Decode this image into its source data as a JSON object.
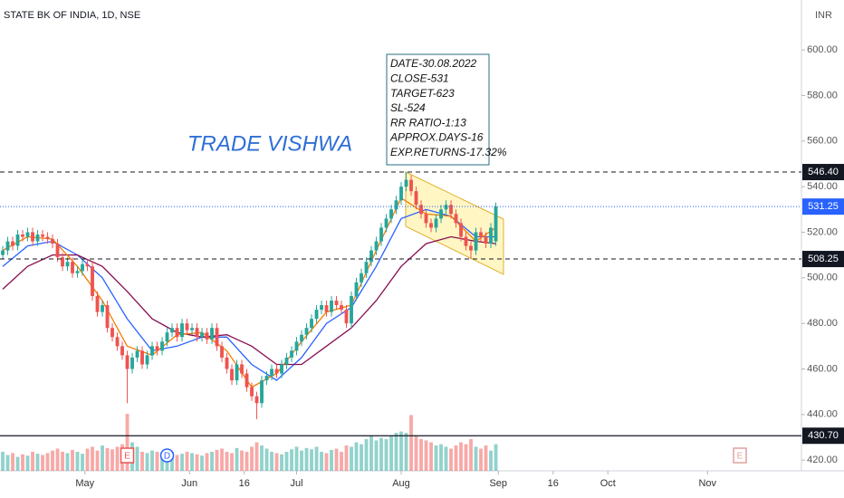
{
  "chart_data": {
    "type": "candlestick",
    "title": "STATE BK OF INDIA, 1D, NSE",
    "currency_label": "INR",
    "up_color": "#26a69a",
    "down_color": "#ef5350",
    "xlim": [
      -0.55,
      160.36
    ],
    "xticks": [
      {
        "value": 16.5,
        "label": "May"
      },
      {
        "value": 37.5,
        "label": "Jun"
      },
      {
        "value": 48.5,
        "label": "16"
      },
      {
        "value": 59,
        "label": "Jul"
      },
      {
        "value": 80,
        "label": "Aug"
      },
      {
        "value": 99.5,
        "label": "Sep"
      },
      {
        "value": 110.5,
        "label": "16"
      },
      {
        "value": 121.5,
        "label": "Oct"
      },
      {
        "value": 141.5,
        "label": "Nov"
      }
    ],
    "ylim": [
      415.3,
      621.9
    ],
    "yticks": [
      {
        "value": 420,
        "label": "420.00"
      },
      {
        "value": 440,
        "label": "440.00"
      },
      {
        "value": 460,
        "label": "460.00"
      },
      {
        "value": 480,
        "label": "480.00"
      },
      {
        "value": 500,
        "label": "500.00"
      },
      {
        "value": 520,
        "label": "520.00"
      },
      {
        "value": 540,
        "label": "540.00"
      },
      {
        "value": 560,
        "label": "560.00"
      },
      {
        "value": 580,
        "label": "580.00"
      },
      {
        "value": 600,
        "label": "600.00"
      }
    ],
    "open": [
      510,
      512,
      516,
      514,
      519,
      518,
      520,
      516,
      519,
      518,
      517,
      515,
      509,
      505,
      507,
      502,
      503,
      506,
      505,
      492,
      485,
      488,
      478,
      474,
      470,
      466,
      460,
      465,
      468,
      462,
      466,
      470,
      468,
      472,
      476,
      478,
      474,
      480,
      477,
      478,
      474,
      476,
      473,
      478,
      470,
      465,
      460,
      455,
      462,
      458,
      452,
      448,
      445,
      455,
      457,
      460,
      458,
      462,
      465,
      468,
      472,
      475,
      478,
      482,
      486,
      488,
      485,
      490,
      488,
      486,
      480,
      492,
      498,
      502,
      507,
      512,
      516,
      522,
      526,
      530,
      534,
      540,
      543,
      538,
      532,
      528,
      524,
      522,
      526,
      530,
      532,
      528,
      524,
      518,
      514,
      512,
      520,
      518,
      515,
      516
    ],
    "high": [
      514,
      518,
      518,
      521,
      521,
      522,
      522,
      521,
      521,
      520,
      519,
      517,
      511,
      509,
      509,
      505,
      508,
      508,
      507,
      494,
      490,
      490,
      480,
      476,
      472,
      468,
      467,
      470,
      470,
      468,
      472,
      472,
      474,
      478,
      480,
      480,
      482,
      482,
      480,
      480,
      478,
      478,
      480,
      480,
      472,
      467,
      462,
      464,
      464,
      460,
      454,
      450,
      457,
      459,
      462,
      462,
      464,
      467,
      470,
      474,
      477,
      480,
      484,
      488,
      490,
      490,
      492,
      492,
      490,
      488,
      494,
      500,
      504,
      509,
      514,
      518,
      524,
      528,
      532,
      536,
      542,
      546.4,
      545,
      540,
      534,
      530,
      526,
      528,
      532,
      534,
      534,
      530,
      526,
      520,
      516,
      522,
      522,
      520,
      524,
      533
    ],
    "low": [
      508,
      510,
      512,
      512,
      516,
      516,
      514,
      514,
      516,
      515,
      513,
      507,
      503,
      503,
      500,
      500,
      501,
      503,
      490,
      483,
      483,
      476,
      472,
      468,
      464,
      445,
      458,
      463,
      460,
      460,
      464,
      466,
      466,
      470,
      474,
      472,
      472,
      475,
      475,
      472,
      472,
      471,
      471,
      468,
      463,
      458,
      453,
      453,
      456,
      450,
      446,
      438,
      443,
      453,
      455,
      456,
      456,
      460,
      463,
      466,
      470,
      473,
      476,
      480,
      484,
      483,
      483,
      486,
      484,
      478,
      478,
      490,
      496,
      500,
      505,
      510,
      514,
      520,
      524,
      528,
      532,
      538,
      536,
      530,
      526,
      522,
      520,
      520,
      524,
      528,
      526,
      522,
      516,
      512,
      508.25,
      510,
      516,
      513,
      513,
      514
    ],
    "close": [
      512,
      516,
      514,
      519,
      518,
      520,
      516,
      519,
      518,
      517,
      515,
      509,
      505,
      507,
      502,
      503,
      506,
      505,
      492,
      485,
      488,
      478,
      474,
      470,
      466,
      460,
      465,
      468,
      462,
      466,
      470,
      468,
      472,
      476,
      478,
      474,
      480,
      477,
      478,
      474,
      476,
      473,
      478,
      470,
      465,
      460,
      455,
      462,
      458,
      452,
      448,
      445,
      455,
      457,
      460,
      458,
      462,
      465,
      468,
      472,
      475,
      478,
      482,
      486,
      488,
      485,
      490,
      488,
      486,
      480,
      492,
      498,
      502,
      507,
      512,
      516,
      522,
      526,
      530,
      534,
      540,
      543,
      538,
      532,
      528,
      524,
      522,
      526,
      530,
      532,
      528,
      524,
      518,
      514,
      512,
      520,
      518,
      515,
      522,
      531.25
    ],
    "volume": [
      30,
      25,
      28,
      22,
      26,
      24,
      30,
      27,
      25,
      28,
      32,
      35,
      30,
      28,
      33,
      30,
      27,
      35,
      38,
      32,
      40,
      36,
      34,
      38,
      42,
      90,
      45,
      38,
      30,
      28,
      32,
      30,
      26,
      28,
      30,
      25,
      27,
      30,
      28,
      26,
      24,
      28,
      30,
      33,
      35,
      30,
      28,
      36,
      32,
      30,
      38,
      45,
      40,
      35,
      30,
      28,
      26,
      30,
      34,
      38,
      32,
      36,
      34,
      38,
      30,
      28,
      33,
      35,
      30,
      40,
      38,
      45,
      42,
      50,
      55,
      48,
      52,
      50,
      55,
      60,
      62,
      60,
      88,
      55,
      50,
      48,
      45,
      40,
      42,
      38,
      35,
      40,
      45,
      42,
      50,
      38,
      35,
      40,
      32,
      42
    ],
    "vlim": [
      0,
      100
    ],
    "ma": [
      {
        "color": "#2962ff",
        "x": [
          0,
          5,
          10,
          15,
          20,
          25,
          30,
          35,
          40,
          45,
          50,
          55,
          60,
          65,
          70,
          75,
          80,
          85,
          90,
          95,
          99
        ],
        "values": [
          505,
          514,
          516,
          510,
          500,
          482,
          468,
          470,
          474,
          474,
          462,
          455,
          465,
          480,
          487,
          505,
          526,
          530,
          527,
          518,
          518
        ]
      },
      {
        "color": "#880e4f",
        "x": [
          0,
          5,
          10,
          15,
          20,
          25,
          30,
          35,
          40,
          45,
          50,
          55,
          60,
          65,
          70,
          75,
          80,
          85,
          90,
          95,
          99
        ],
        "values": [
          495,
          505,
          510,
          510,
          505,
          494,
          482,
          476,
          474,
          475,
          470,
          462,
          462,
          470,
          478,
          490,
          505,
          515,
          518,
          516,
          515
        ]
      },
      {
        "color": "#f57c00",
        "x": [
          0,
          5,
          10,
          15,
          20,
          25,
          30,
          35,
          40,
          45,
          50,
          55,
          60,
          65,
          70,
          75,
          80,
          85,
          90,
          95,
          99
        ],
        "values": [
          512,
          518,
          517,
          505,
          490,
          470,
          466,
          475,
          476,
          468,
          452,
          458,
          472,
          485,
          488,
          512,
          535,
          528,
          527,
          516,
          522
        ]
      }
    ],
    "price_lines": [
      {
        "value": 546.4,
        "label": "546.40",
        "color": "#131722",
        "style": "dashed"
      },
      {
        "value": 531.25,
        "label": "531.25",
        "color": "#2962ff",
        "style": "dotted"
      },
      {
        "value": 508.25,
        "label": "508.25",
        "color": "#131722",
        "style": "dashed"
      },
      {
        "value": 430.7,
        "label": "430.70",
        "color": "#131722",
        "style": "solid"
      }
    ],
    "markers": [
      {
        "x": 25,
        "label": "E",
        "color": "#ef5350",
        "shape": "square"
      },
      {
        "x": 33,
        "label": "D",
        "color": "#2962ff",
        "shape": "circle"
      },
      {
        "x": 148,
        "label": "E",
        "color": "#e0a0a0",
        "shape": "square"
      }
    ],
    "watermark": "TRADE VISHWA",
    "note_lines": [
      "DATE-30.08.2022",
      "CLOSE-531",
      "TARGET-623",
      "SL-524",
      "RR RATIO-1:13",
      "APPROX.DAYS-16",
      "EXP.RETURNS-17.32%"
    ]
  }
}
